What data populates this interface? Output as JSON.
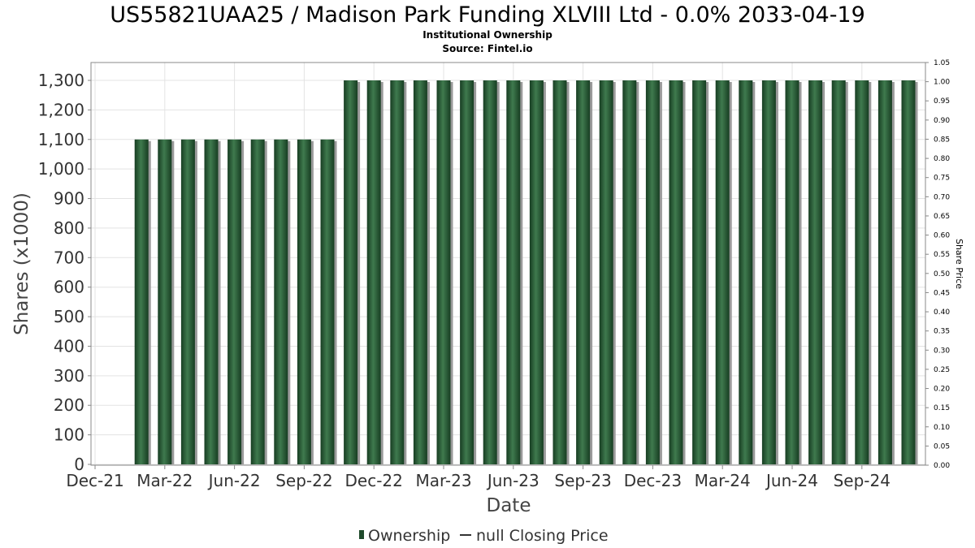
{
  "chart_data": {
    "type": "bar",
    "title": "US55821UAA25 / Madison Park Funding XLVIII Ltd - 0.0% 2033-04-19",
    "subtitle": "Institutional Ownership",
    "source": "Source: Fintel.io",
    "xlabel": "Date",
    "ylabel": "Shares (x1000)",
    "y2label": "Share Price",
    "ylim": [
      0,
      1300
    ],
    "y2lim": [
      0,
      1.05
    ],
    "yticks": [
      0,
      100,
      200,
      300,
      400,
      500,
      600,
      700,
      800,
      900,
      1000,
      1100,
      1200,
      1300
    ],
    "ytick_labels": [
      "0",
      "100",
      "200",
      "300",
      "400",
      "500",
      "600",
      "700",
      "800",
      "900",
      "1,000",
      "1,100",
      "1,200",
      "1,300"
    ],
    "y2ticks": [
      "0.00",
      "0.05",
      "0.10",
      "0.15",
      "0.20",
      "0.25",
      "0.30",
      "0.35",
      "0.40",
      "0.45",
      "0.50",
      "0.55",
      "0.60",
      "0.65",
      "0.70",
      "0.75",
      "0.80",
      "0.85",
      "0.90",
      "0.95",
      "1.00",
      "1.05"
    ],
    "xticks": [
      "Dec-21",
      "Mar-22",
      "Jun-22",
      "Sep-22",
      "Dec-22",
      "Mar-23",
      "Jun-23",
      "Sep-23",
      "Dec-23",
      "Mar-24",
      "Jun-24",
      "Sep-24"
    ],
    "grid": true,
    "legend_position": "bottom",
    "colors": {
      "bar": "#1f4a2b",
      "bar_highlight": "#3f7a4e",
      "shadow": "#9a9a9a",
      "grid": "#e3e3e3",
      "border": "#888888"
    },
    "series": [
      {
        "name": "Ownership",
        "values": [
          1100,
          1100,
          1100,
          1100,
          1100,
          1100,
          1100,
          1100,
          1100,
          1300,
          1300,
          1300,
          1300,
          1300,
          1300,
          1300,
          1300,
          1300,
          1300,
          1300,
          1300,
          1300,
          1300,
          1300,
          1300,
          1300,
          1300,
          1300,
          1300,
          1300,
          1300,
          1300,
          1300,
          1300
        ]
      }
    ],
    "legend": [
      {
        "label": "Ownership",
        "kind": "bar"
      },
      {
        "label": "null Closing Price",
        "kind": "line"
      }
    ]
  }
}
